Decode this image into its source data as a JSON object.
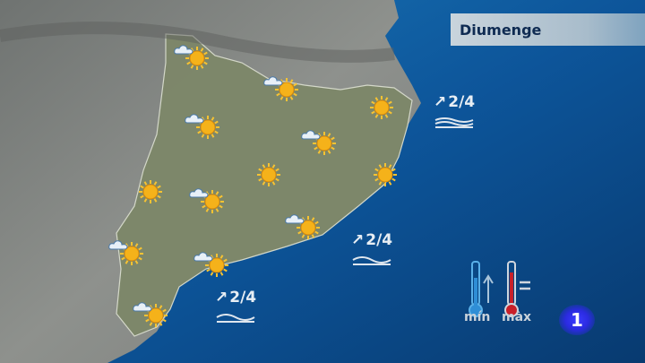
{
  "title": "Diumenge",
  "weather_icons": [
    {
      "type": "sun-cloud"
    },
    {
      "type": "sun-cloud"
    },
    {
      "type": "sun"
    },
    {
      "type": "sun-cloud"
    },
    {
      "type": "sun-cloud"
    },
    {
      "type": "sun"
    },
    {
      "type": "sun"
    },
    {
      "type": "sun"
    },
    {
      "type": "sun-cloud"
    },
    {
      "type": "sun-cloud"
    },
    {
      "type": "sun-cloud"
    },
    {
      "type": "sun-cloud"
    },
    {
      "type": "sun-cloud"
    }
  ],
  "sea_states": [
    {
      "wind_icon": "arrow-northeast-icon",
      "value": "2/4"
    },
    {
      "wind_icon": "arrow-northeast-icon",
      "value": "2/4"
    },
    {
      "wind_icon": "arrow-northeast-icon",
      "value": "2/4"
    }
  ],
  "legend": {
    "min_label": "mín",
    "max_label": "màx",
    "min_trend": "rising",
    "max_trend": "steady"
  },
  "channel_logo": "1",
  "colors": {
    "sea": "#0b4a86",
    "land": "#8a8d88",
    "region": "#7f8a6e",
    "sun": "#f5b21a",
    "max_thermo": "#c8202a",
    "min_thermo": "#3a8fd0"
  }
}
